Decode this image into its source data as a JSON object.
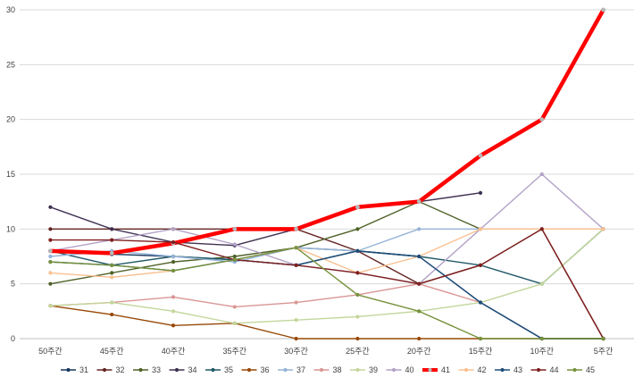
{
  "chart_data": {
    "type": "line",
    "title": "",
    "xlabel": "",
    "ylabel": "",
    "categories": [
      "50주간",
      "45주간",
      "40주간",
      "35주간",
      "30주간",
      "25주간",
      "20주간",
      "15주간",
      "10주간",
      "5주간"
    ],
    "ylim": [
      0,
      30
    ],
    "yticks": [
      0,
      5,
      10,
      15,
      20,
      25,
      30
    ],
    "grid": "horizontal",
    "legend": "bottom",
    "series": [
      {
        "name": "31",
        "color": "#17375e",
        "values": [
          8,
          7.7,
          7.5,
          7.2,
          6.7,
          8,
          7.5,
          3.3,
          0,
          0
        ]
      },
      {
        "name": "32",
        "color": "#632523",
        "values": [
          10,
          10,
          10,
          10,
          10,
          8,
          5,
          6.7,
          10,
          0
        ]
      },
      {
        "name": "33",
        "color": "#4f6228",
        "values": [
          5,
          6,
          7,
          7.5,
          8.3,
          10,
          12.5,
          10,
          null,
          null
        ]
      },
      {
        "name": "34",
        "color": "#3f3151",
        "values": [
          12,
          10,
          8.8,
          8.5,
          10,
          12,
          12.5,
          13.3,
          null,
          null
        ]
      },
      {
        "name": "35",
        "color": "#215968",
        "values": [
          8,
          6.7,
          7.5,
          7.2,
          8.3,
          8,
          7.5,
          6.7,
          5,
          10
        ]
      },
      {
        "name": "36",
        "color": "#974806",
        "values": [
          3,
          2.2,
          1.2,
          1.4,
          0,
          0,
          0,
          0,
          0,
          0
        ]
      },
      {
        "name": "37",
        "color": "#95b3d7",
        "values": [
          7.5,
          8,
          7.5,
          7,
          8.3,
          8,
          10,
          10,
          10,
          10
        ]
      },
      {
        "name": "38",
        "color": "#d99694",
        "values": [
          3,
          3.3,
          3.8,
          2.9,
          3.3,
          4,
          5,
          3.3,
          null,
          null
        ]
      },
      {
        "name": "39",
        "color": "#c3d69b",
        "values": [
          3,
          3.3,
          2.5,
          1.4,
          1.7,
          2,
          2.5,
          3.3,
          5,
          10
        ]
      },
      {
        "name": "40",
        "color": "#b3a2c7",
        "values": [
          8,
          9,
          10,
          8.6,
          6.7,
          6,
          5,
          10,
          15,
          10
        ]
      },
      {
        "name": "41",
        "color": "#ff0000",
        "values": [
          8,
          7.8,
          8.7,
          10,
          10,
          12,
          12.5,
          16.7,
          20,
          30
        ]
      },
      {
        "name": "42",
        "color": "#fac090",
        "values": [
          6,
          5.6,
          6.2,
          7.2,
          8.3,
          6,
          7.5,
          10,
          10,
          10
        ]
      },
      {
        "name": "43",
        "color": "#1f4e79",
        "values": [
          7,
          6.7,
          6.2,
          7.2,
          6.7,
          8,
          7.5,
          3.3,
          0,
          0
        ]
      },
      {
        "name": "44",
        "color": "#7f1f1f",
        "values": [
          9,
          9,
          8.8,
          7.2,
          6.7,
          6,
          5,
          6.7,
          10,
          0
        ]
      },
      {
        "name": "45",
        "color": "#76923c",
        "values": [
          7,
          6.7,
          6.2,
          7.2,
          8.3,
          4,
          2.5,
          0,
          0,
          0
        ]
      }
    ]
  }
}
